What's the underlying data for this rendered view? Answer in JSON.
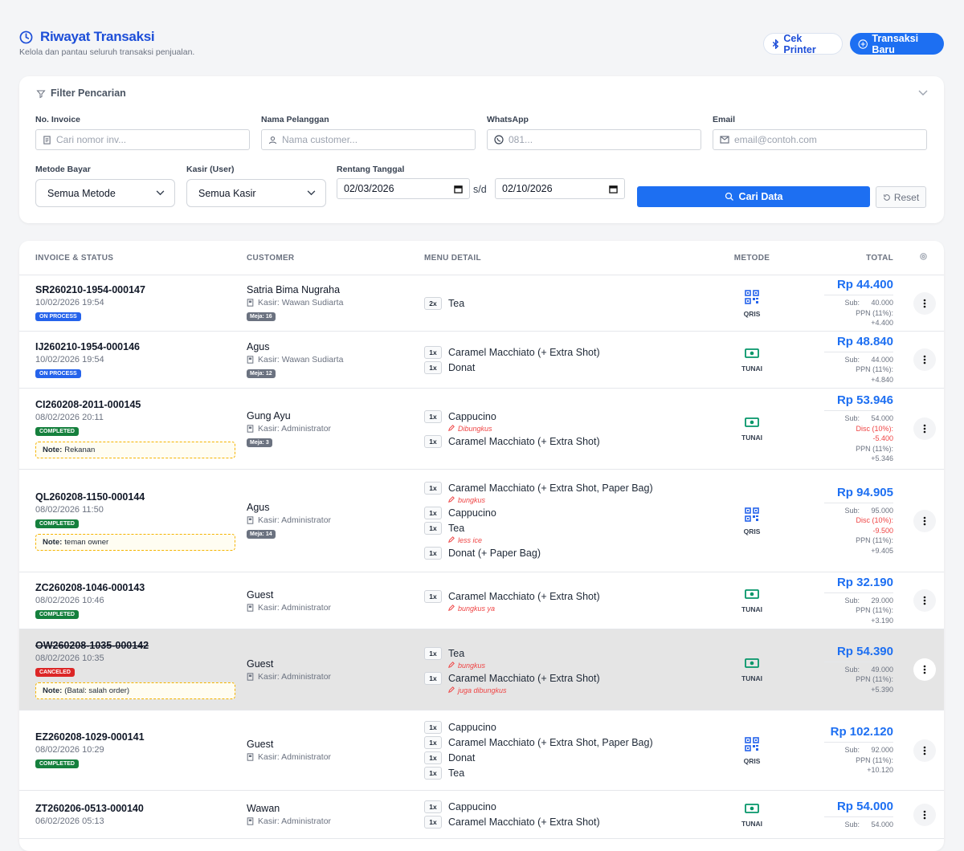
{
  "header": {
    "title": "Riwayat Transaksi",
    "subtitle": "Kelola dan pantau seluruh transaksi penjualan.",
    "buttons": [
      "Cek Printer",
      "Transaksi Baru"
    ]
  },
  "filter": {
    "title": "Filter Pencarian",
    "fields": [
      {
        "label": "No. Invoice",
        "placeholder": "Cari nomor inv..."
      },
      {
        "label": "Nama Pelanggan",
        "placeholder": "Nama customer..."
      },
      {
        "label": "WhatsApp",
        "placeholder": "081..."
      },
      {
        "label": "Email",
        "placeholder": "email@contoh.com"
      }
    ],
    "selects": [
      {
        "label": "Metode Bayar",
        "value": "Semua Metode"
      },
      {
        "label": "Kasir (User)",
        "value": "Semua Kasir"
      }
    ],
    "date": {
      "label": "Rentang Tanggal",
      "from": "02/03/2026",
      "separator": "s/d",
      "to": "02/10/2026"
    },
    "search": "Cari Data",
    "reset": "Reset"
  },
  "table": {
    "columns": [
      "INVOICE & STATUS",
      "CUSTOMER",
      "MENU DETAIL",
      "METODE",
      "TOTAL"
    ],
    "note_label": "Note:",
    "rows": [
      {
        "invoice": "SR260210-1954-000147",
        "datetime": "10/02/2026 19:54",
        "status": "ON PROCESS",
        "status_color": "#2563eb",
        "customer": "Satria Bima Nugraha",
        "cashier": "Kasir: Wawan Sudiarta",
        "table_no": "Meja: 16",
        "items": [
          {
            "qty": "2x",
            "name": "Tea"
          }
        ],
        "method": "QRIS",
        "icon": "qr",
        "total": "Rp 44.400",
        "breakdown": [
          {
            "label": "Sub:",
            "value": "40.000"
          },
          {
            "label": "PPN (11%):",
            "value": "+4.400"
          }
        ]
      },
      {
        "invoice": "IJ260210-1954-000146",
        "datetime": "10/02/2026 19:54",
        "status": "ON PROCESS",
        "status_color": "#2563eb",
        "customer": "Agus",
        "cashier": "Kasir: Wawan Sudiarta",
        "table_no": "Meja: 12",
        "items": [
          {
            "qty": "1x",
            "name": "Caramel Macchiato (+ Extra Shot)"
          },
          {
            "qty": "1x",
            "name": "Donat"
          }
        ],
        "method": "TUNAI",
        "icon": "cash",
        "total": "Rp 48.840",
        "breakdown": [
          {
            "label": "Sub:",
            "value": "44.000"
          },
          {
            "label": "PPN (11%):",
            "value": "+4.840"
          }
        ]
      },
      {
        "invoice": "CI260208-2011-000145",
        "datetime": "08/02/2026 20:11",
        "status": "COMPLETED",
        "status_color": "#15803d",
        "note": "Rekanan",
        "customer": "Gung Ayu",
        "cashier": "Kasir: Administrator",
        "table_no": "Meja: 3",
        "items": [
          {
            "qty": "1x",
            "name": "Cappucino",
            "note": "Dibungkus"
          },
          {
            "qty": "1x",
            "name": "Caramel Macchiato (+ Extra Shot)"
          }
        ],
        "method": "TUNAI",
        "icon": "cash",
        "total": "Rp 53.946",
        "breakdown": [
          {
            "label": "Sub:",
            "value": "54.000"
          },
          {
            "label": "Disc (10%):",
            "value": "-5.400",
            "color": "#ef4444"
          },
          {
            "label": "PPN (11%):",
            "value": "+5.346"
          }
        ]
      },
      {
        "invoice": "QL260208-1150-000144",
        "datetime": "08/02/2026 11:50",
        "status": "COMPLETED",
        "status_color": "#15803d",
        "note": "teman owner",
        "customer": "Agus",
        "cashier": "Kasir: Administrator",
        "table_no": "Meja: 14",
        "items": [
          {
            "qty": "1x",
            "name": "Caramel Macchiato (+ Extra Shot, Paper Bag)",
            "note": "bungkus"
          },
          {
            "qty": "1x",
            "name": "Cappucino"
          },
          {
            "qty": "1x",
            "name": "Tea",
            "note": "less ice"
          },
          {
            "qty": "1x",
            "name": "Donat (+ Paper Bag)"
          }
        ],
        "method": "QRIS",
        "icon": "qr",
        "total": "Rp 94.905",
        "breakdown": [
          {
            "label": "Sub:",
            "value": "95.000"
          },
          {
            "label": "Disc (10%):",
            "value": "-9.500",
            "color": "#ef4444"
          },
          {
            "label": "PPN (11%):",
            "value": "+9.405"
          }
        ]
      },
      {
        "invoice": "ZC260208-1046-000143",
        "datetime": "08/02/2026 10:46",
        "status": "COMPLETED",
        "status_color": "#15803d",
        "customer": "Guest",
        "cashier": "Kasir: Administrator",
        "items": [
          {
            "qty": "1x",
            "name": "Caramel Macchiato (+ Extra Shot)",
            "note": "bungkus ya"
          }
        ],
        "method": "TUNAI",
        "icon": "cash",
        "total": "Rp 32.190",
        "breakdown": [
          {
            "label": "Sub:",
            "value": "29.000"
          },
          {
            "label": "PPN (11%):",
            "value": "+3.190"
          }
        ]
      },
      {
        "invoice": "OW260208-1035-000142",
        "strikethrough": true,
        "row_background": "#e5e5e5",
        "datetime": "08/02/2026 10:35",
        "status": "CANCELED",
        "status_color": "#dc2626",
        "note": "(Batal: salah order)",
        "customer": "Guest",
        "cashier": "Kasir: Administrator",
        "items": [
          {
            "qty": "1x",
            "name": "Tea",
            "note": "bungkus"
          },
          {
            "qty": "1x",
            "name": "Caramel Macchiato (+ Extra Shot)",
            "note": "juga dibungkus"
          }
        ],
        "method": "TUNAI",
        "icon": "cash",
        "total": "Rp 54.390",
        "breakdown": [
          {
            "label": "Sub:",
            "value": "49.000"
          },
          {
            "label": "PPN (11%):",
            "value": "+5.390"
          }
        ]
      },
      {
        "invoice": "EZ260208-1029-000141",
        "datetime": "08/02/2026 10:29",
        "status": "COMPLETED",
        "status_color": "#15803d",
        "customer": "Guest",
        "cashier": "Kasir: Administrator",
        "items": [
          {
            "qty": "1x",
            "name": "Cappucino"
          },
          {
            "qty": "1x",
            "name": "Caramel Macchiato (+ Extra Shot, Paper Bag)"
          },
          {
            "qty": "1x",
            "name": "Donat"
          },
          {
            "qty": "1x",
            "name": "Tea"
          }
        ],
        "method": "QRIS",
        "icon": "qr",
        "total": "Rp 102.120",
        "breakdown": [
          {
            "label": "Sub:",
            "value": "92.000"
          },
          {
            "label": "PPN (11%):",
            "value": "+10.120"
          }
        ]
      },
      {
        "invoice": "ZT260206-0513-000140",
        "datetime": "06/02/2026 05:13",
        "customer": "Wawan",
        "cashier": "Kasir: Administrator",
        "items": [
          {
            "qty": "1x",
            "name": "Cappucino"
          },
          {
            "qty": "1x",
            "name": "Caramel Macchiato (+ Extra Shot)"
          }
        ],
        "method": "TUNAI",
        "icon": "cash",
        "total": "Rp 54.000",
        "breakdown": [
          {
            "label": "Sub:",
            "value": "54.000"
          }
        ]
      }
    ]
  }
}
